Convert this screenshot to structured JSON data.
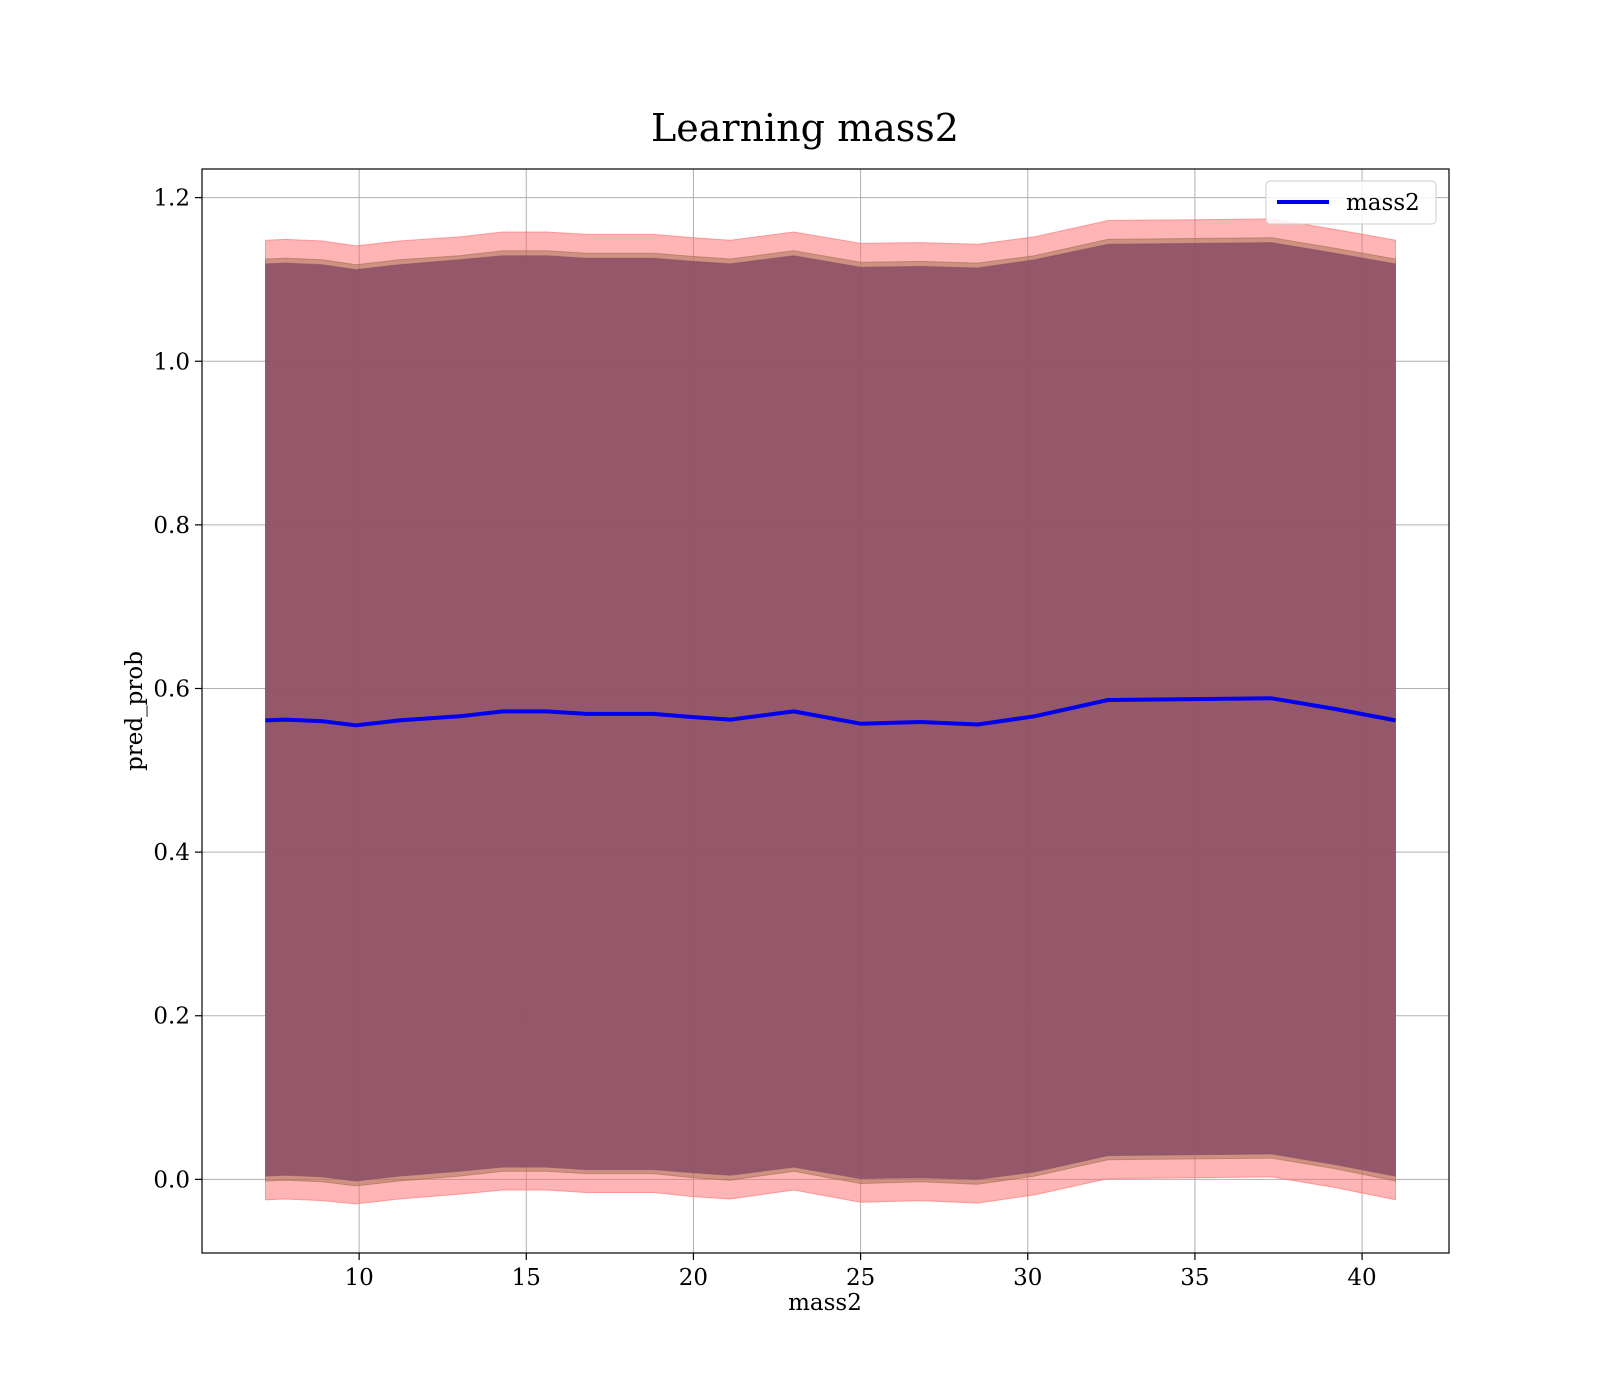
{
  "chart_data": {
    "type": "line",
    "title": "Learning mass2",
    "xlabel": "mass2",
    "ylabel": "pred_prob",
    "xlim": [
      5.3,
      42.6
    ],
    "ylim": [
      -0.09,
      1.235
    ],
    "xticks": [
      10,
      15,
      20,
      25,
      30,
      35,
      40
    ],
    "yticks": [
      0.0,
      0.2,
      0.4,
      0.6,
      0.8,
      1.0,
      1.2
    ],
    "grid": true,
    "legend_position": "top-right",
    "x": [
      7.2,
      7.8,
      8.9,
      9.9,
      11.2,
      13.0,
      14.3,
      15.6,
      16.8,
      18.8,
      20.0,
      21.1,
      23.0,
      25.0,
      26.8,
      28.5,
      30.2,
      32.4,
      35.0,
      37.3,
      39.2,
      41.0
    ],
    "series": [
      {
        "name": "mass2",
        "color": "#0000ee",
        "values": [
          0.561,
          0.562,
          0.56,
          0.555,
          0.561,
          0.566,
          0.572,
          0.572,
          0.569,
          0.569,
          0.565,
          0.562,
          0.572,
          0.557,
          0.559,
          0.556,
          0.566,
          0.586,
          0.587,
          0.588,
          0.575,
          0.561
        ]
      }
    ],
    "bands": [
      {
        "color": "#ff6b6b",
        "lower": [
          -0.025,
          -0.024,
          -0.026,
          -0.03,
          -0.024,
          -0.018,
          -0.013,
          -0.013,
          -0.016,
          -0.016,
          -0.021,
          -0.024,
          -0.013,
          -0.028,
          -0.026,
          -0.029,
          -0.019,
          0.001,
          0.002,
          0.003,
          -0.01,
          -0.025
        ],
        "upper": [
          1.148,
          1.149,
          1.147,
          1.141,
          1.147,
          1.152,
          1.158,
          1.158,
          1.155,
          1.155,
          1.151,
          1.148,
          1.158,
          1.144,
          1.145,
          1.143,
          1.152,
          1.172,
          1.173,
          1.174,
          1.161,
          1.148
        ]
      },
      {
        "color": "#a07050",
        "lower": [
          -0.002,
          -0.001,
          -0.003,
          -0.008,
          -0.002,
          0.004,
          0.01,
          0.01,
          0.007,
          0.007,
          0.002,
          -0.001,
          0.01,
          -0.005,
          -0.003,
          -0.006,
          0.004,
          0.024,
          0.025,
          0.026,
          0.013,
          -0.002
        ],
        "upper": [
          1.125,
          1.126,
          1.124,
          1.118,
          1.124,
          1.129,
          1.135,
          1.135,
          1.132,
          1.132,
          1.128,
          1.125,
          1.135,
          1.121,
          1.122,
          1.12,
          1.129,
          1.149,
          1.15,
          1.151,
          1.138,
          1.125
        ]
      },
      {
        "color": "#8a4e66",
        "lower": [
          0.004,
          0.005,
          0.003,
          -0.002,
          0.004,
          0.01,
          0.015,
          0.015,
          0.012,
          0.012,
          0.008,
          0.005,
          0.015,
          0.001,
          0.002,
          0.0,
          0.009,
          0.029,
          0.03,
          0.031,
          0.018,
          0.004
        ],
        "upper": [
          1.119,
          1.12,
          1.118,
          1.112,
          1.118,
          1.124,
          1.129,
          1.129,
          1.126,
          1.126,
          1.122,
          1.119,
          1.129,
          1.115,
          1.116,
          1.114,
          1.124,
          1.143,
          1.144,
          1.145,
          1.132,
          1.119
        ]
      }
    ]
  }
}
